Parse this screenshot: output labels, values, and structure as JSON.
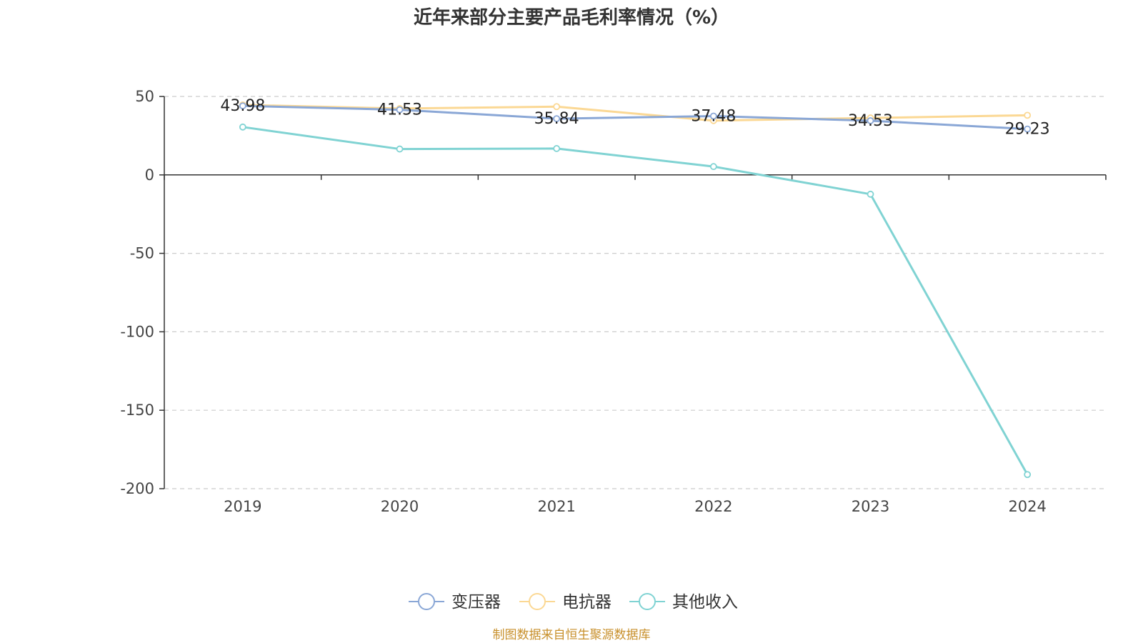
{
  "title": "近年来部分主要产品毛利率情况（%）",
  "source": "制图数据来自恒生聚源数据库",
  "chart_data": {
    "type": "line",
    "title": "近年来部分主要产品毛利率情况（%）",
    "categories": [
      "2019",
      "2020",
      "2021",
      "2022",
      "2023",
      "2024"
    ],
    "ylim": [
      -200,
      50
    ],
    "yticks": [
      50,
      0,
      -50,
      -100,
      -150,
      -200
    ],
    "grid": true,
    "legend_position": "bottom",
    "series": [
      {
        "name": "变压器",
        "color": "#8aa7d6",
        "values": [
          43.98,
          41.53,
          35.84,
          37.48,
          34.53,
          29.23
        ],
        "labels": [
          "43.98",
          "41.53",
          "35.84",
          "37.48",
          "34.53",
          "29.23"
        ]
      },
      {
        "name": "电抗器",
        "color": "#fbd894",
        "values": [
          44.6,
          42.3,
          43.5,
          34.6,
          36.3,
          38.0
        ]
      },
      {
        "name": "其他收入",
        "color": "#80d3d3",
        "values": [
          30.5,
          16.5,
          16.8,
          5.3,
          -12.3,
          -191.0
        ]
      }
    ]
  }
}
